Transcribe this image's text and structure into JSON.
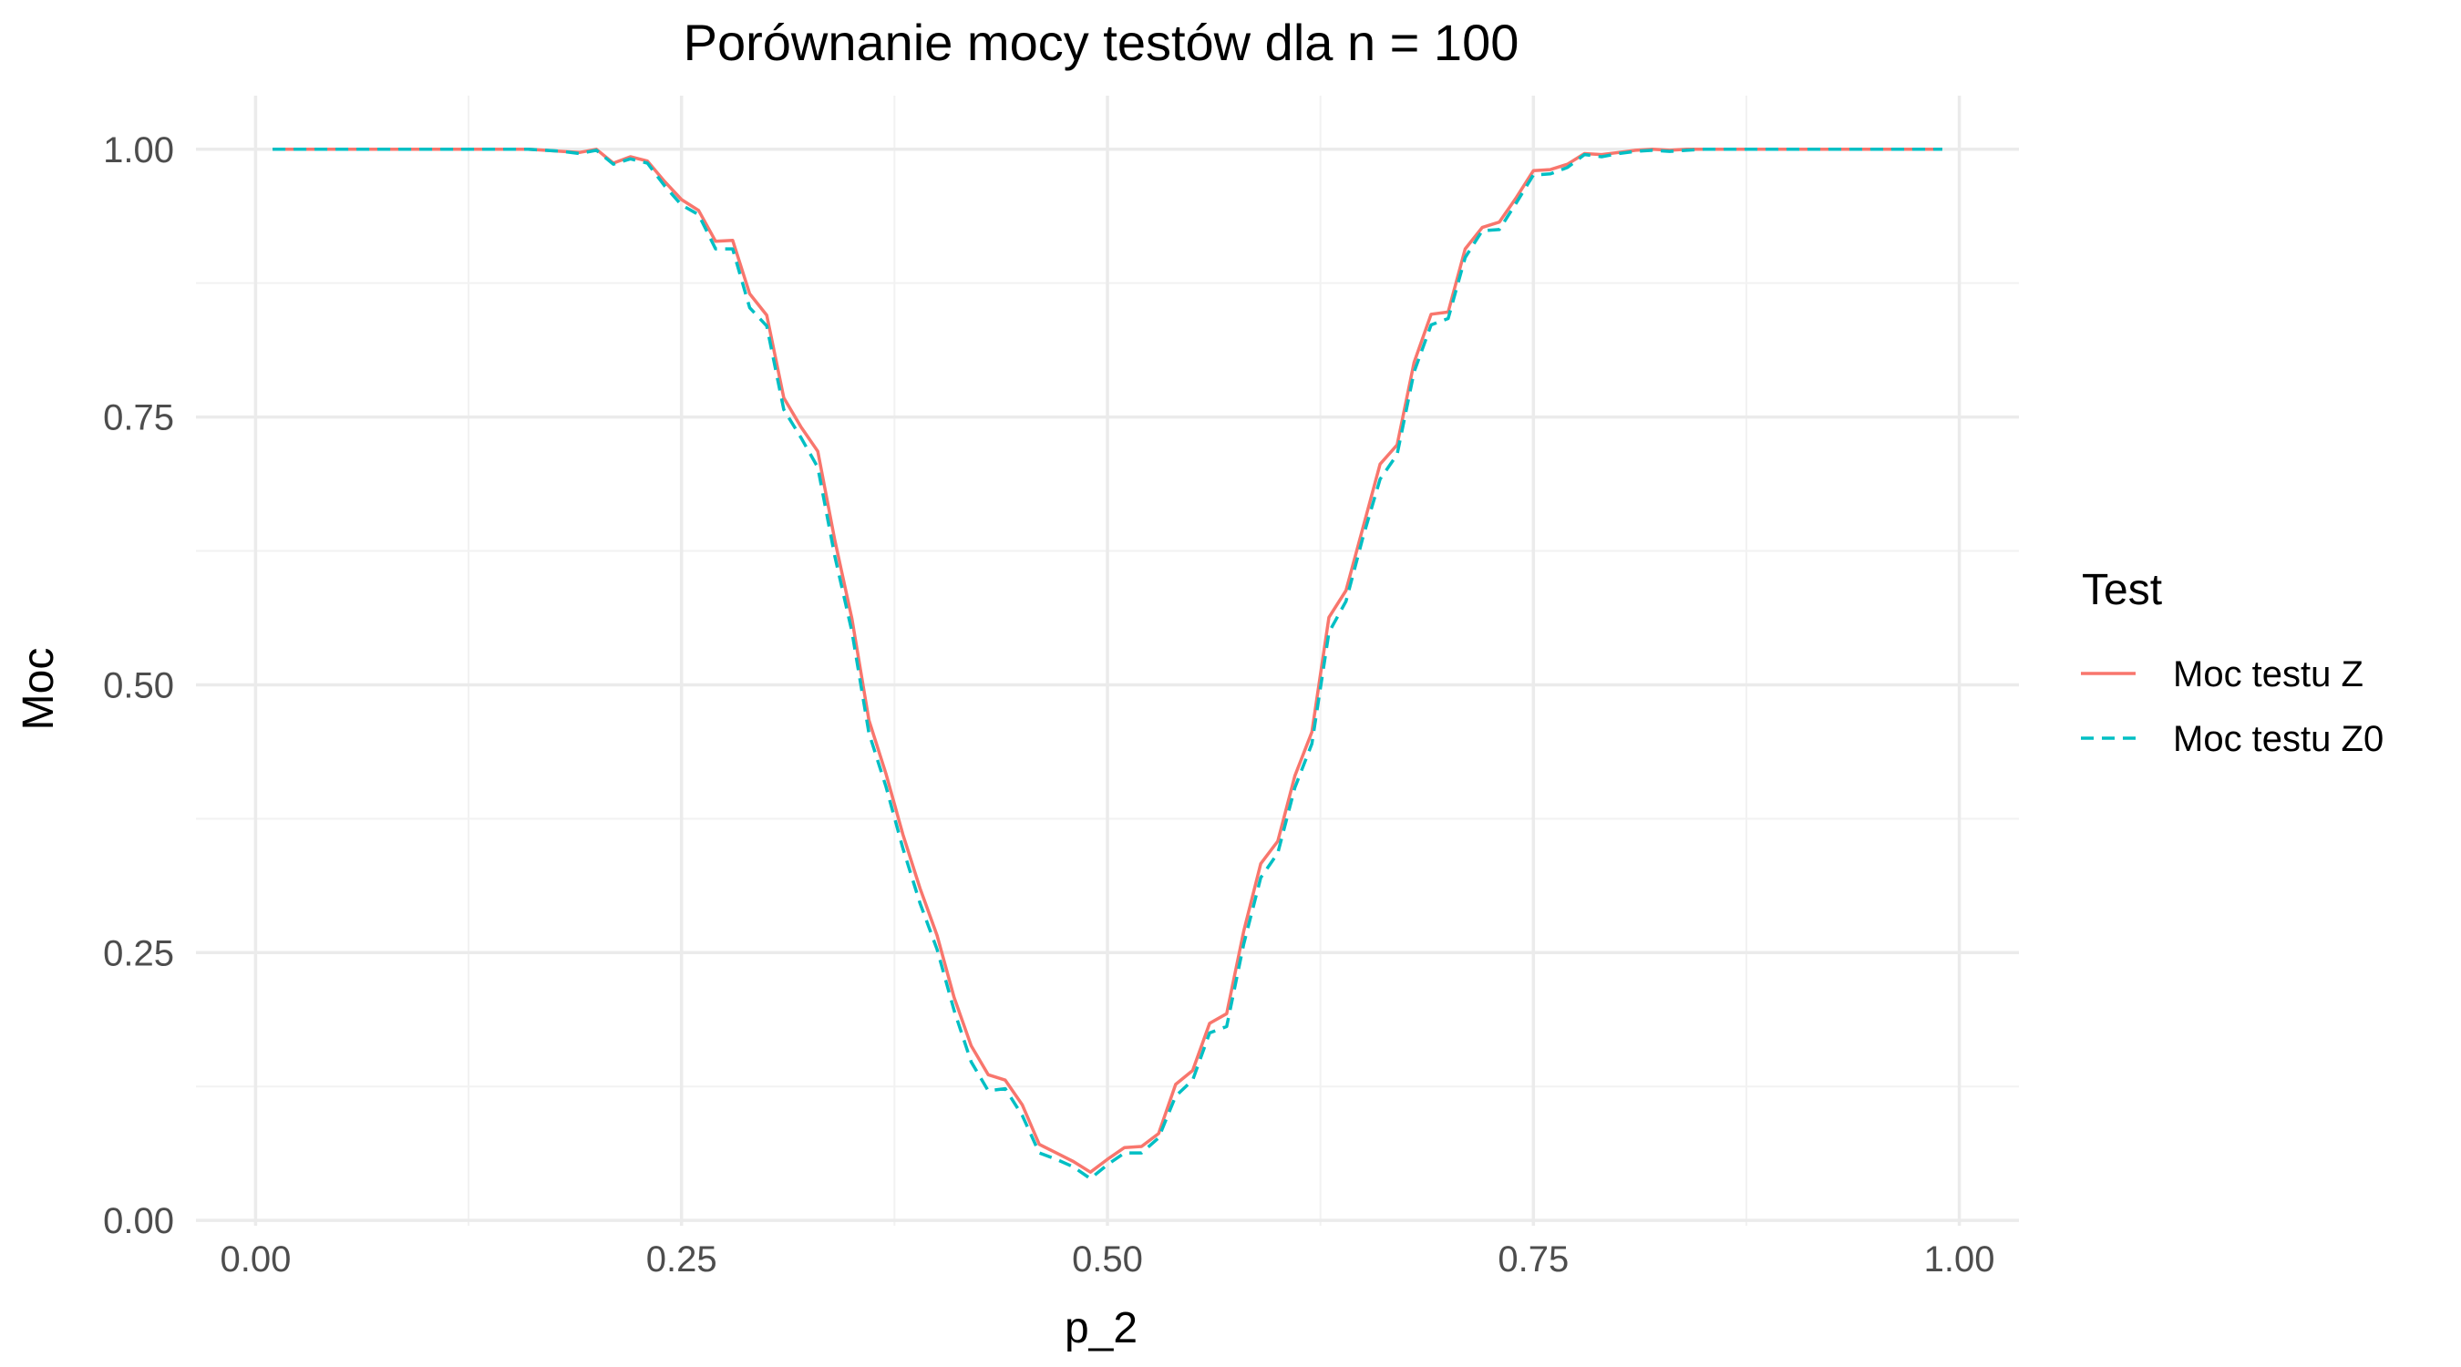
{
  "chart_data": {
    "type": "line",
    "title": "Porównanie mocy testów dla n = 100",
    "xlabel": "p_2",
    "ylabel": "Moc",
    "xlim": [
      -0.035,
      1.035
    ],
    "ylim": [
      -0.005,
      1.05
    ],
    "x_ticks": [
      0.0,
      0.25,
      0.5,
      0.75,
      1.0
    ],
    "x_tick_labels": [
      "0.00",
      "0.25",
      "0.50",
      "0.75",
      "1.00"
    ],
    "y_ticks": [
      0.0,
      0.25,
      0.5,
      0.75,
      1.0
    ],
    "y_tick_labels": [
      "0.00",
      "0.25",
      "0.50",
      "0.75",
      "1.00"
    ],
    "grid": true,
    "legend": {
      "title": "Test",
      "position": "right"
    },
    "x": [
      0.01,
      0.02,
      0.03,
      0.04,
      0.05,
      0.06,
      0.07,
      0.08,
      0.09,
      0.1,
      0.11,
      0.12,
      0.13,
      0.14,
      0.15,
      0.16,
      0.17,
      0.18,
      0.19,
      0.2,
      0.21,
      0.22,
      0.23,
      0.24,
      0.25,
      0.26,
      0.27,
      0.28,
      0.29,
      0.3,
      0.31,
      0.32,
      0.33,
      0.34,
      0.35,
      0.36,
      0.37,
      0.38,
      0.39,
      0.4,
      0.41,
      0.42,
      0.43,
      0.44,
      0.45,
      0.46,
      0.47,
      0.48,
      0.49,
      0.5,
      0.51,
      0.52,
      0.53,
      0.54,
      0.55,
      0.56,
      0.57,
      0.58,
      0.59,
      0.6,
      0.61,
      0.62,
      0.63,
      0.64,
      0.65,
      0.66,
      0.67,
      0.68,
      0.69,
      0.7,
      0.71,
      0.72,
      0.73,
      0.74,
      0.75,
      0.76,
      0.77,
      0.78,
      0.79,
      0.8,
      0.81,
      0.82,
      0.83,
      0.84,
      0.85,
      0.86,
      0.87,
      0.88,
      0.89,
      0.9,
      0.91,
      0.92,
      0.93,
      0.94,
      0.95,
      0.96,
      0.97,
      0.98,
      0.99
    ],
    "series": [
      {
        "name": "Moc testu Z",
        "color": "#F8766D",
        "dash": "solid",
        "values": [
          1.0,
          1.0,
          1.0,
          1.0,
          1.0,
          1.0,
          1.0,
          1.0,
          1.0,
          1.0,
          1.0,
          1.0,
          1.0,
          1.0,
          1.0,
          1.0,
          0.999,
          0.998,
          0.997,
          1.0,
          0.987,
          0.993,
          0.989,
          0.97,
          0.953,
          0.943,
          0.914,
          0.915,
          0.865,
          0.845,
          0.768,
          0.741,
          0.718,
          0.635,
          0.562,
          0.467,
          0.417,
          0.36,
          0.31,
          0.266,
          0.208,
          0.163,
          0.136,
          0.131,
          0.108,
          0.071,
          0.063,
          0.055,
          0.045,
          0.057,
          0.068,
          0.069,
          0.081,
          0.127,
          0.14,
          0.184,
          0.193,
          0.27,
          0.333,
          0.354,
          0.415,
          0.456,
          0.563,
          0.588,
          0.647,
          0.706,
          0.724,
          0.801,
          0.846,
          0.848,
          0.907,
          0.927,
          0.932,
          0.955,
          0.98,
          0.981,
          0.986,
          0.996,
          0.995,
          0.997,
          0.999,
          1.0,
          0.999,
          1.0,
          1.0,
          1.0,
          1.0,
          1.0,
          1.0,
          1.0,
          1.0,
          1.0,
          1.0,
          1.0,
          1.0,
          1.0,
          1.0,
          1.0,
          1.0
        ]
      },
      {
        "name": "Moc testu Z0",
        "color": "#00BFC4",
        "dash": "dashed",
        "values": [
          1.0,
          1.0,
          1.0,
          1.0,
          1.0,
          1.0,
          1.0,
          1.0,
          1.0,
          1.0,
          1.0,
          1.0,
          1.0,
          1.0,
          1.0,
          1.0,
          0.999,
          0.998,
          0.996,
          0.999,
          0.986,
          0.991,
          0.987,
          0.966,
          0.948,
          0.939,
          0.907,
          0.907,
          0.852,
          0.835,
          0.757,
          0.731,
          0.703,
          0.62,
          0.55,
          0.455,
          0.405,
          0.347,
          0.296,
          0.253,
          0.196,
          0.148,
          0.121,
          0.123,
          0.098,
          0.063,
          0.057,
          0.05,
          0.039,
          0.052,
          0.063,
          0.063,
          0.077,
          0.116,
          0.131,
          0.175,
          0.181,
          0.258,
          0.32,
          0.343,
          0.404,
          0.445,
          0.549,
          0.578,
          0.638,
          0.692,
          0.715,
          0.792,
          0.836,
          0.842,
          0.899,
          0.924,
          0.925,
          0.95,
          0.976,
          0.977,
          0.983,
          0.995,
          0.993,
          0.996,
          0.998,
          0.999,
          0.998,
          0.999,
          1.0,
          1.0,
          1.0,
          1.0,
          1.0,
          1.0,
          1.0,
          1.0,
          1.0,
          1.0,
          1.0,
          1.0,
          1.0,
          1.0,
          1.0
        ]
      }
    ]
  }
}
